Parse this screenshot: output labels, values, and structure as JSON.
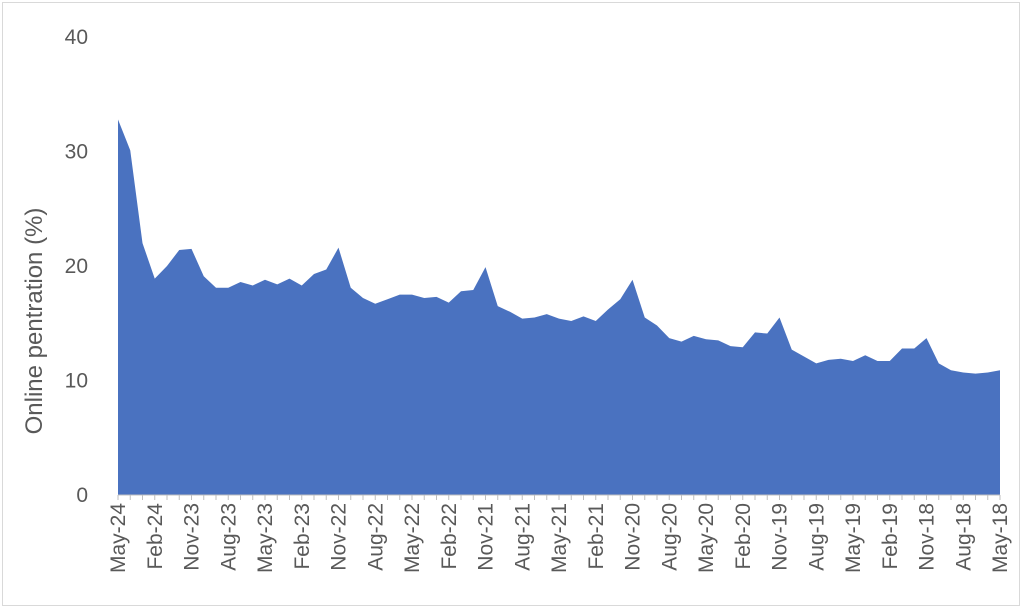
{
  "chart_data": {
    "type": "area",
    "title": "",
    "ylabel": "Online pentration (%)",
    "xlabel": "",
    "ylim": [
      0,
      40
    ],
    "yticks": [
      0,
      10,
      20,
      30,
      40
    ],
    "grid": false,
    "colors": {
      "area": "#4a72c0",
      "axis": "#bfbfbf",
      "text": "#595959"
    },
    "x_order": "reverse-chronological",
    "x": [
      "May-24",
      "Apr-24",
      "Mar-24",
      "Feb-24",
      "Jan-24",
      "Dec-23",
      "Nov-23",
      "Oct-23",
      "Sep-23",
      "Aug-23",
      "Jul-23",
      "Jun-23",
      "May-23",
      "Apr-23",
      "Mar-23",
      "Feb-23",
      "Jan-23",
      "Dec-22",
      "Nov-22",
      "Oct-22",
      "Sep-22",
      "Aug-22",
      "Jul-22",
      "Jun-22",
      "May-22",
      "Apr-22",
      "Mar-22",
      "Feb-22",
      "Jan-22",
      "Dec-21",
      "Nov-21",
      "Oct-21",
      "Sep-21",
      "Aug-21",
      "Jul-21",
      "Jun-21",
      "May-21",
      "Apr-21",
      "Mar-21",
      "Feb-21",
      "Jan-21",
      "Dec-20",
      "Nov-20",
      "Oct-20",
      "Sep-20",
      "Aug-20",
      "Jul-20",
      "Jun-20",
      "May-20",
      "Apr-20",
      "Mar-20",
      "Feb-20",
      "Jan-20",
      "Dec-19",
      "Nov-19",
      "Oct-19",
      "Sep-19",
      "Aug-19",
      "Jul-19",
      "Jun-19",
      "May-19",
      "Apr-19",
      "Mar-19",
      "Feb-19",
      "Jan-19",
      "Dec-18",
      "Nov-18",
      "Oct-18",
      "Sep-18",
      "Aug-18",
      "Jul-18",
      "Jun-18",
      "May-18"
    ],
    "tick_labels": [
      "May-24",
      "Feb-24",
      "Nov-23",
      "Aug-23",
      "May-23",
      "Feb-23",
      "Nov-22",
      "Aug-22",
      "May-22",
      "Feb-22",
      "Nov-21",
      "Aug-21",
      "May-21",
      "Feb-21",
      "Nov-20",
      "Aug-20",
      "May-20",
      "Feb-20",
      "Nov-19",
      "Aug-19",
      "May-19",
      "Feb-19",
      "Nov-18",
      "Aug-18",
      "May-18"
    ],
    "series": [
      {
        "values": [
          32.8,
          30.1,
          22.0,
          18.9,
          20.0,
          21.4,
          21.5,
          19.1,
          18.1,
          18.1,
          18.6,
          18.3,
          18.8,
          18.4,
          18.9,
          18.3,
          19.3,
          19.7,
          21.6,
          18.1,
          17.2,
          16.7,
          17.1,
          17.5,
          17.5,
          17.2,
          17.3,
          16.8,
          17.8,
          17.9,
          19.9,
          16.5,
          16.0,
          15.4,
          15.5,
          15.8,
          15.4,
          15.2,
          15.6,
          15.2,
          16.2,
          17.1,
          18.8,
          15.5,
          14.8,
          13.7,
          13.4,
          13.9,
          13.6,
          13.5,
          13.0,
          12.9,
          14.2,
          14.1,
          15.5,
          12.7,
          12.1,
          11.5,
          11.8,
          11.9,
          11.7,
          12.2,
          11.7,
          11.7,
          12.8,
          12.8,
          13.7,
          11.5,
          10.9,
          10.7,
          10.6,
          10.7,
          10.9
        ]
      }
    ]
  }
}
